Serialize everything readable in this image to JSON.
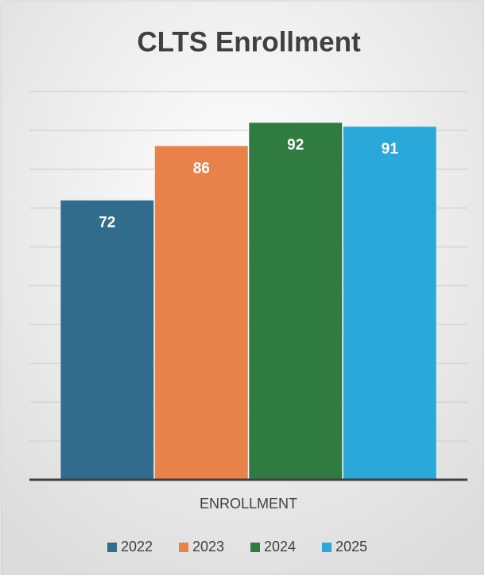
{
  "chart_data": {
    "type": "bar",
    "title": "CLTS Enrollment",
    "categories": [
      "ENROLLMENT"
    ],
    "series": [
      {
        "name": "2022",
        "color": "#316c8c",
        "values": [
          72
        ]
      },
      {
        "name": "2023",
        "color": "#e9814b",
        "values": [
          86
        ]
      },
      {
        "name": "2024",
        "color": "#2f7b40",
        "values": [
          92
        ]
      },
      {
        "name": "2025",
        "color": "#2ba8da",
        "values": [
          91
        ]
      }
    ],
    "ylim": [
      0,
      100
    ],
    "yticks": [
      0,
      10,
      20,
      30,
      40,
      50,
      60,
      70,
      80,
      90,
      100
    ],
    "grid": true,
    "legend": "bottom"
  }
}
